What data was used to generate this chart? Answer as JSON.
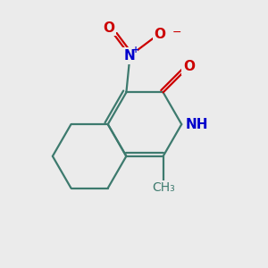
{
  "bg_color": "#ebebeb",
  "bond_color": "#3d7a6e",
  "bond_width": 1.6,
  "N_color": "#0000cc",
  "O_color": "#cc0000",
  "font_size_atom": 11,
  "fig_width": 3.0,
  "fig_height": 3.0,
  "xlim": [
    -3.2,
    2.4
  ],
  "ylim": [
    -2.8,
    2.8
  ]
}
